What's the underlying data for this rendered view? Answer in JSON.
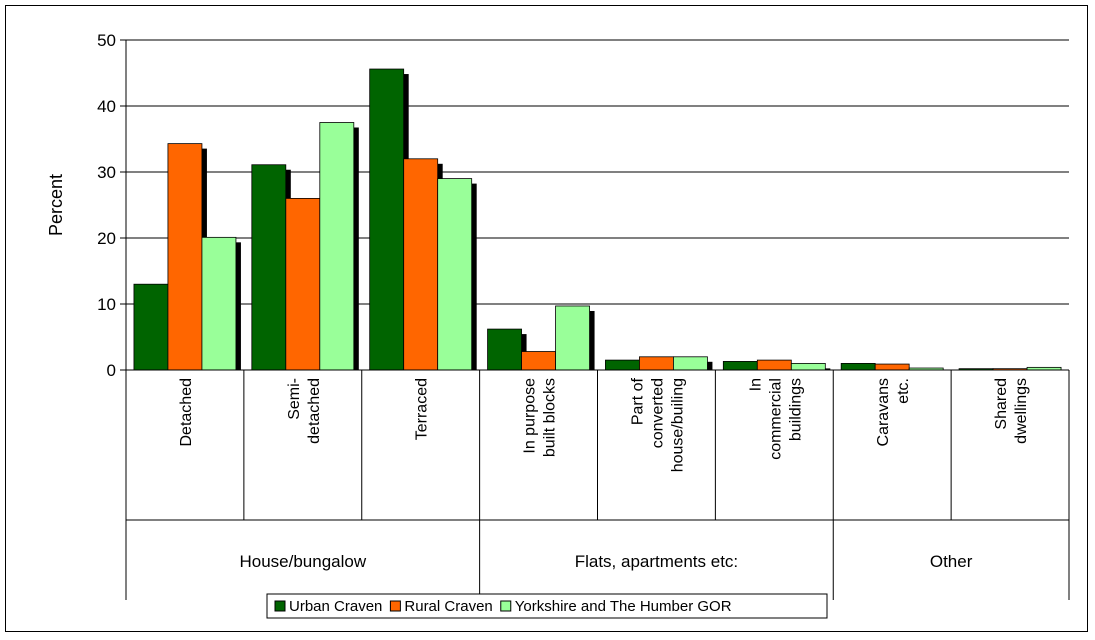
{
  "chart_data": {
    "type": "bar",
    "ylabel": "Percent",
    "ylim": [
      0,
      50
    ],
    "yticks": [
      "0",
      "10",
      "20",
      "30",
      "40",
      "50"
    ],
    "grid": true,
    "legend_position": "bottom",
    "categories": [
      "Detached",
      "Semi-detached",
      "Terraced",
      "In purpose built blocks",
      "Part of converted house/builing",
      "In commercial buildings",
      "Caravans etc.",
      "Shared dwellings"
    ],
    "category_label_lines": [
      [
        "Detached"
      ],
      [
        "Semi-",
        "detached"
      ],
      [
        "Terraced"
      ],
      [
        "In purpose",
        "built blocks"
      ],
      [
        "Part of",
        "converted",
        "house/builing"
      ],
      [
        "In",
        "commercial",
        "buildings"
      ],
      [
        "Caravans",
        "etc."
      ],
      [
        "Shared",
        "dwellings"
      ]
    ],
    "groups": [
      {
        "label": "House/bungalow",
        "start": 0,
        "count": 3
      },
      {
        "label": "Flats, apartments etc:",
        "start": 3,
        "count": 3
      },
      {
        "label": "Other",
        "start": 6,
        "count": 2
      }
    ],
    "series": [
      {
        "name": "Urban Craven",
        "color": "#006400",
        "values": [
          13.0,
          31.1,
          45.6,
          6.2,
          1.5,
          1.3,
          1.0,
          0.2
        ]
      },
      {
        "name": "Rural Craven",
        "color": "#FF6600",
        "values": [
          34.3,
          26.0,
          32.0,
          2.8,
          2.0,
          1.5,
          0.9,
          0.2
        ]
      },
      {
        "name": "Yorkshire and The Humber GOR",
        "color": "#99FF99",
        "values": [
          20.1,
          37.5,
          29.0,
          9.7,
          2.0,
          1.0,
          0.3,
          0.4
        ]
      }
    ]
  }
}
